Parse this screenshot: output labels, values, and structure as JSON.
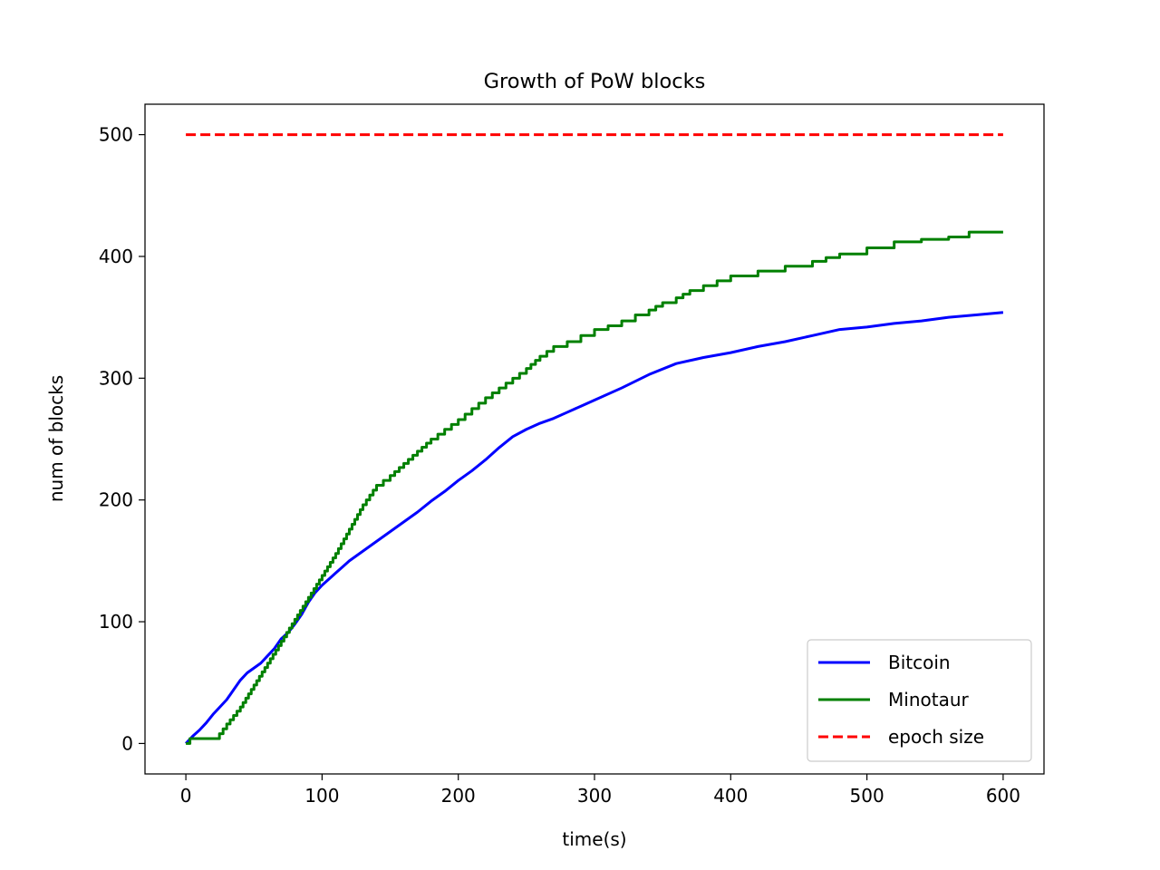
{
  "chart_data": {
    "type": "line",
    "title": "Growth of PoW blocks",
    "xlabel": "time(s)",
    "ylabel": "num of blocks",
    "xlim": [
      -30,
      630
    ],
    "ylim": [
      -25,
      525
    ],
    "xticks": [
      0,
      100,
      200,
      300,
      400,
      500,
      600
    ],
    "yticks": [
      0,
      100,
      200,
      300,
      400,
      500
    ],
    "grid": false,
    "legend_position": "bottom-right",
    "series": [
      {
        "name": "Bitcoin",
        "color": "#0000ff",
        "style": "solid",
        "x": [
          0,
          5,
          10,
          15,
          20,
          25,
          30,
          35,
          40,
          45,
          50,
          55,
          60,
          65,
          70,
          75,
          80,
          85,
          90,
          95,
          100,
          110,
          120,
          130,
          140,
          150,
          160,
          170,
          180,
          190,
          200,
          210,
          220,
          230,
          240,
          250,
          260,
          270,
          280,
          290,
          300,
          320,
          340,
          360,
          380,
          400,
          420,
          440,
          460,
          480,
          500,
          520,
          540,
          560,
          580,
          600
        ],
        "y": [
          0,
          6,
          11,
          17,
          24,
          30,
          36,
          44,
          52,
          58,
          62,
          66,
          72,
          78,
          86,
          91,
          98,
          106,
          116,
          124,
          130,
          140,
          150,
          158,
          166,
          174,
          182,
          190,
          199,
          207,
          216,
          224,
          233,
          243,
          252,
          258,
          263,
          267,
          272,
          277,
          282,
          292,
          303,
          312,
          317,
          321,
          326,
          330,
          335,
          340,
          342,
          345,
          347,
          350,
          352,
          354
        ]
      },
      {
        "name": "Minotaur",
        "color": "#008000",
        "style": "step",
        "x": [
          0,
          3,
          22,
          30,
          40,
          50,
          60,
          70,
          80,
          90,
          100,
          110,
          120,
          130,
          140,
          150,
          160,
          170,
          180,
          190,
          200,
          210,
          220,
          230,
          240,
          250,
          260,
          270,
          280,
          290,
          300,
          310,
          320,
          330,
          340,
          350,
          360,
          370,
          380,
          390,
          400,
          420,
          440,
          460,
          480,
          500,
          520,
          540,
          560,
          575,
          600
        ],
        "y": [
          0,
          4,
          4,
          16,
          30,
          48,
          66,
          84,
          102,
          120,
          138,
          156,
          176,
          196,
          212,
          220,
          230,
          240,
          250,
          258,
          266,
          275,
          284,
          292,
          300,
          308,
          318,
          326,
          330,
          335,
          340,
          343,
          347,
          352,
          356,
          362,
          366,
          372,
          376,
          380,
          384,
          388,
          392,
          396,
          402,
          407,
          412,
          414,
          416,
          420,
          420
        ]
      },
      {
        "name": "epoch size",
        "color": "#ff0000",
        "style": "dashed",
        "x": [
          0,
          600
        ],
        "y": [
          500,
          500
        ]
      }
    ]
  }
}
